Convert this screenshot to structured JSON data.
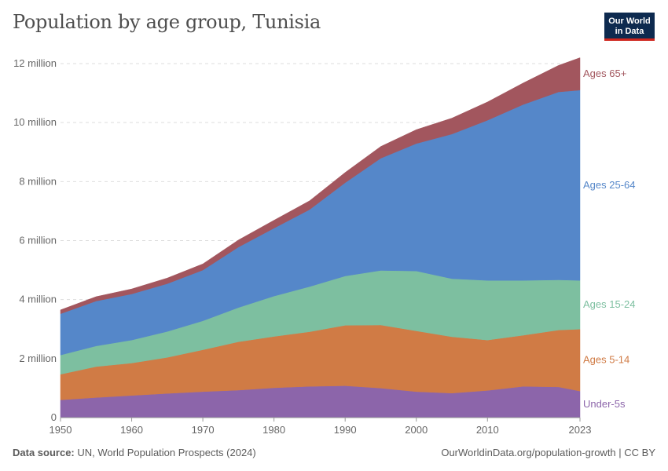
{
  "header": {
    "title": "Population by age group, Tunisia"
  },
  "logo": {
    "line1": "Our World",
    "line2": "in Data",
    "bg_color": "#0d2a4f",
    "accent_color": "#ce261e"
  },
  "footer": {
    "source_label": "Data source:",
    "source_text": "UN, World Population Prospects (2024)",
    "url_text": "OurWorldinData.org/population-growth | CC BY"
  },
  "chart_data": {
    "type": "area",
    "stacked": true,
    "title": "Population by age group, Tunisia",
    "xlabel": "",
    "ylabel": "",
    "xlim": [
      1950,
      2023
    ],
    "ylim": [
      0,
      12000000
    ],
    "x_ticks": [
      1950,
      1960,
      1970,
      1980,
      1990,
      2000,
      2010,
      2023
    ],
    "x_tick_labels": [
      "1950",
      "1960",
      "1970",
      "1980",
      "1990",
      "2000",
      "2010",
      "2023"
    ],
    "y_ticks": [
      0,
      2000000,
      4000000,
      6000000,
      8000000,
      10000000,
      12000000
    ],
    "y_tick_labels": [
      "0",
      "2 million",
      "4 million",
      "6 million",
      "8 million",
      "10 million",
      "12 million"
    ],
    "grid": true,
    "legend": "right-inline",
    "x": [
      1950,
      1955,
      1960,
      1965,
      1970,
      1975,
      1980,
      1985,
      1990,
      1995,
      2000,
      2005,
      2010,
      2015,
      2020,
      2023
    ],
    "series": [
      {
        "name": "Under-5s",
        "color": "#8c65aa",
        "values": [
          600000,
          680000,
          750000,
          820000,
          880000,
          930000,
          1010000,
          1060000,
          1080000,
          1000000,
          880000,
          830000,
          920000,
          1060000,
          1040000,
          900000
        ]
      },
      {
        "name": "Ages 5-14",
        "color": "#d07b45",
        "values": [
          870000,
          1050000,
          1100000,
          1220000,
          1420000,
          1640000,
          1740000,
          1850000,
          2050000,
          2140000,
          2060000,
          1910000,
          1710000,
          1730000,
          1930000,
          2100000
        ]
      },
      {
        "name": "Ages 15-24",
        "color": "#7dbfa0",
        "values": [
          650000,
          700000,
          780000,
          880000,
          980000,
          1160000,
          1370000,
          1530000,
          1670000,
          1850000,
          2030000,
          1970000,
          2020000,
          1860000,
          1700000,
          1650000
        ]
      },
      {
        "name": "Ages 25-64",
        "color": "#5587c9",
        "values": [
          1400000,
          1520000,
          1560000,
          1620000,
          1720000,
          2050000,
          2300000,
          2610000,
          3160000,
          3800000,
          4320000,
          4900000,
          5430000,
          5960000,
          6370000,
          6450000
        ]
      },
      {
        "name": "Ages 65+",
        "color": "#a2565e",
        "values": [
          130000,
          150000,
          170000,
          190000,
          210000,
          240000,
          270000,
          300000,
          350000,
          400000,
          470000,
          540000,
          620000,
          730000,
          900000,
          1100000
        ]
      }
    ]
  }
}
